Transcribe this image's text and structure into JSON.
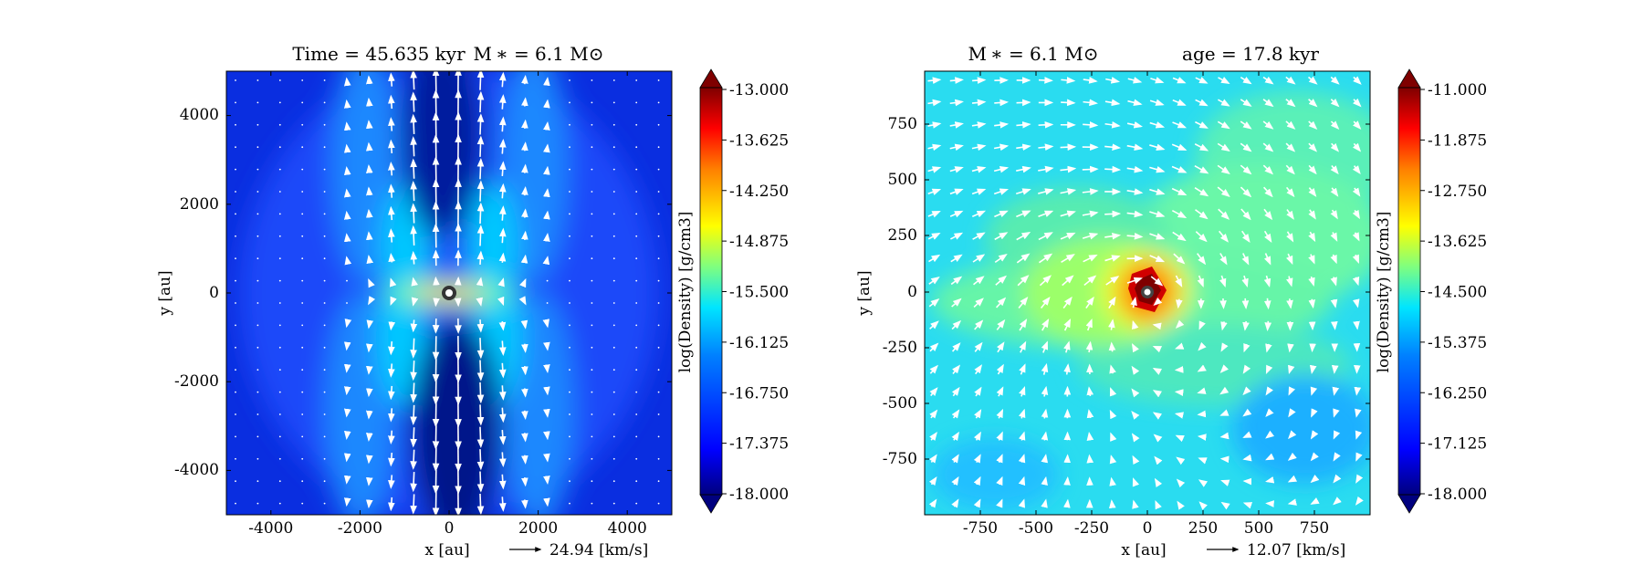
{
  "chart_data": [
    {
      "type": "heatmap",
      "title_time": "Time = 45.635 kyr",
      "title_mass": "M ∗ = 6.1 M⊙",
      "xlabel": "x [au]",
      "ylabel": "y [au]",
      "xlim": [
        -5000,
        5000
      ],
      "ylim": [
        -5000,
        5000
      ],
      "xticks": [
        -4000,
        -2000,
        0,
        2000,
        4000
      ],
      "yticks": [
        -4000,
        -2000,
        0,
        2000,
        4000
      ],
      "colorbar_label": "log(Density) [g/cm3]",
      "colorbar_range": [
        -18.0,
        -13.0
      ],
      "colorbar_ticks": [
        "-13.000",
        "-13.625",
        "-14.250",
        "-14.875",
        "-15.500",
        "-16.125",
        "-16.750",
        "-17.375",
        "-18.000"
      ],
      "quiver_key_label": "24.94 [km/s]",
      "field_structure": "bipolar-outflow",
      "star_position": [
        0,
        0
      ]
    },
    {
      "type": "heatmap",
      "title_mass": "M ∗ = 6.1 M⊙",
      "title_age": "age = 17.8 kyr",
      "xlabel": "x [au]",
      "ylabel": "y [au]",
      "xlim": [
        -1000,
        1000
      ],
      "ylim": [
        -1000,
        1000
      ],
      "xticks": [
        -750,
        -500,
        -250,
        0,
        250,
        500,
        750
      ],
      "yticks": [
        750,
        500,
        250,
        0,
        -250,
        -500,
        -750
      ],
      "colorbar_label": "log(Density) [g/cm3]",
      "colorbar_range": [
        -18.0,
        -11.0
      ],
      "colorbar_ticks": [
        "-11.000",
        "-11.875",
        "-12.750",
        "-13.625",
        "-14.500",
        "-15.375",
        "-16.250",
        "-17.125",
        "-18.000"
      ],
      "quiver_key_label": "12.07 [km/s]",
      "field_structure": "rotating-disk",
      "star_position": [
        0,
        0
      ]
    }
  ],
  "colors": {
    "cmap": [
      "#00007f",
      "#0000ff",
      "#007fff",
      "#00ffff",
      "#7fff7f",
      "#ffff00",
      "#ff7f00",
      "#ff0000",
      "#7f0000"
    ],
    "arrow": "#ffffff",
    "star_core": "#ffffff",
    "star_ring": "#333333"
  }
}
